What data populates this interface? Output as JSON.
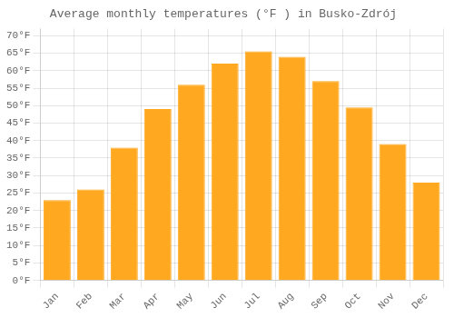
{
  "chart_data": {
    "type": "bar",
    "title": "Average monthly temperatures (°F ) in Busko-Zdrój",
    "categories": [
      "Jan",
      "Feb",
      "Mar",
      "Apr",
      "May",
      "Jun",
      "Jul",
      "Aug",
      "Sep",
      "Oct",
      "Nov",
      "Dec"
    ],
    "values": [
      23,
      26,
      38,
      49,
      56,
      62,
      65.5,
      64,
      57,
      49.5,
      39,
      28
    ],
    "color": "#FFA820",
    "ylim": [
      0,
      72
    ],
    "yticks": [
      {
        "value": 0,
        "label": "0°F"
      },
      {
        "value": 5,
        "label": "5°F"
      },
      {
        "value": 10,
        "label": "10°F"
      },
      {
        "value": 15,
        "label": "15°F"
      },
      {
        "value": 20,
        "label": "20°F"
      },
      {
        "value": 25,
        "label": "25°F"
      },
      {
        "value": 30,
        "label": "30°F"
      },
      {
        "value": 35,
        "label": "35°F"
      },
      {
        "value": 40,
        "label": "40°F"
      },
      {
        "value": 45,
        "label": "45°F"
      },
      {
        "value": 50,
        "label": "50°F"
      },
      {
        "value": 55,
        "label": "55°F"
      },
      {
        "value": 60,
        "label": "60°F"
      },
      {
        "value": 65,
        "label": "65°F"
      },
      {
        "value": 70,
        "label": "70°F"
      }
    ],
    "grid": true
  }
}
